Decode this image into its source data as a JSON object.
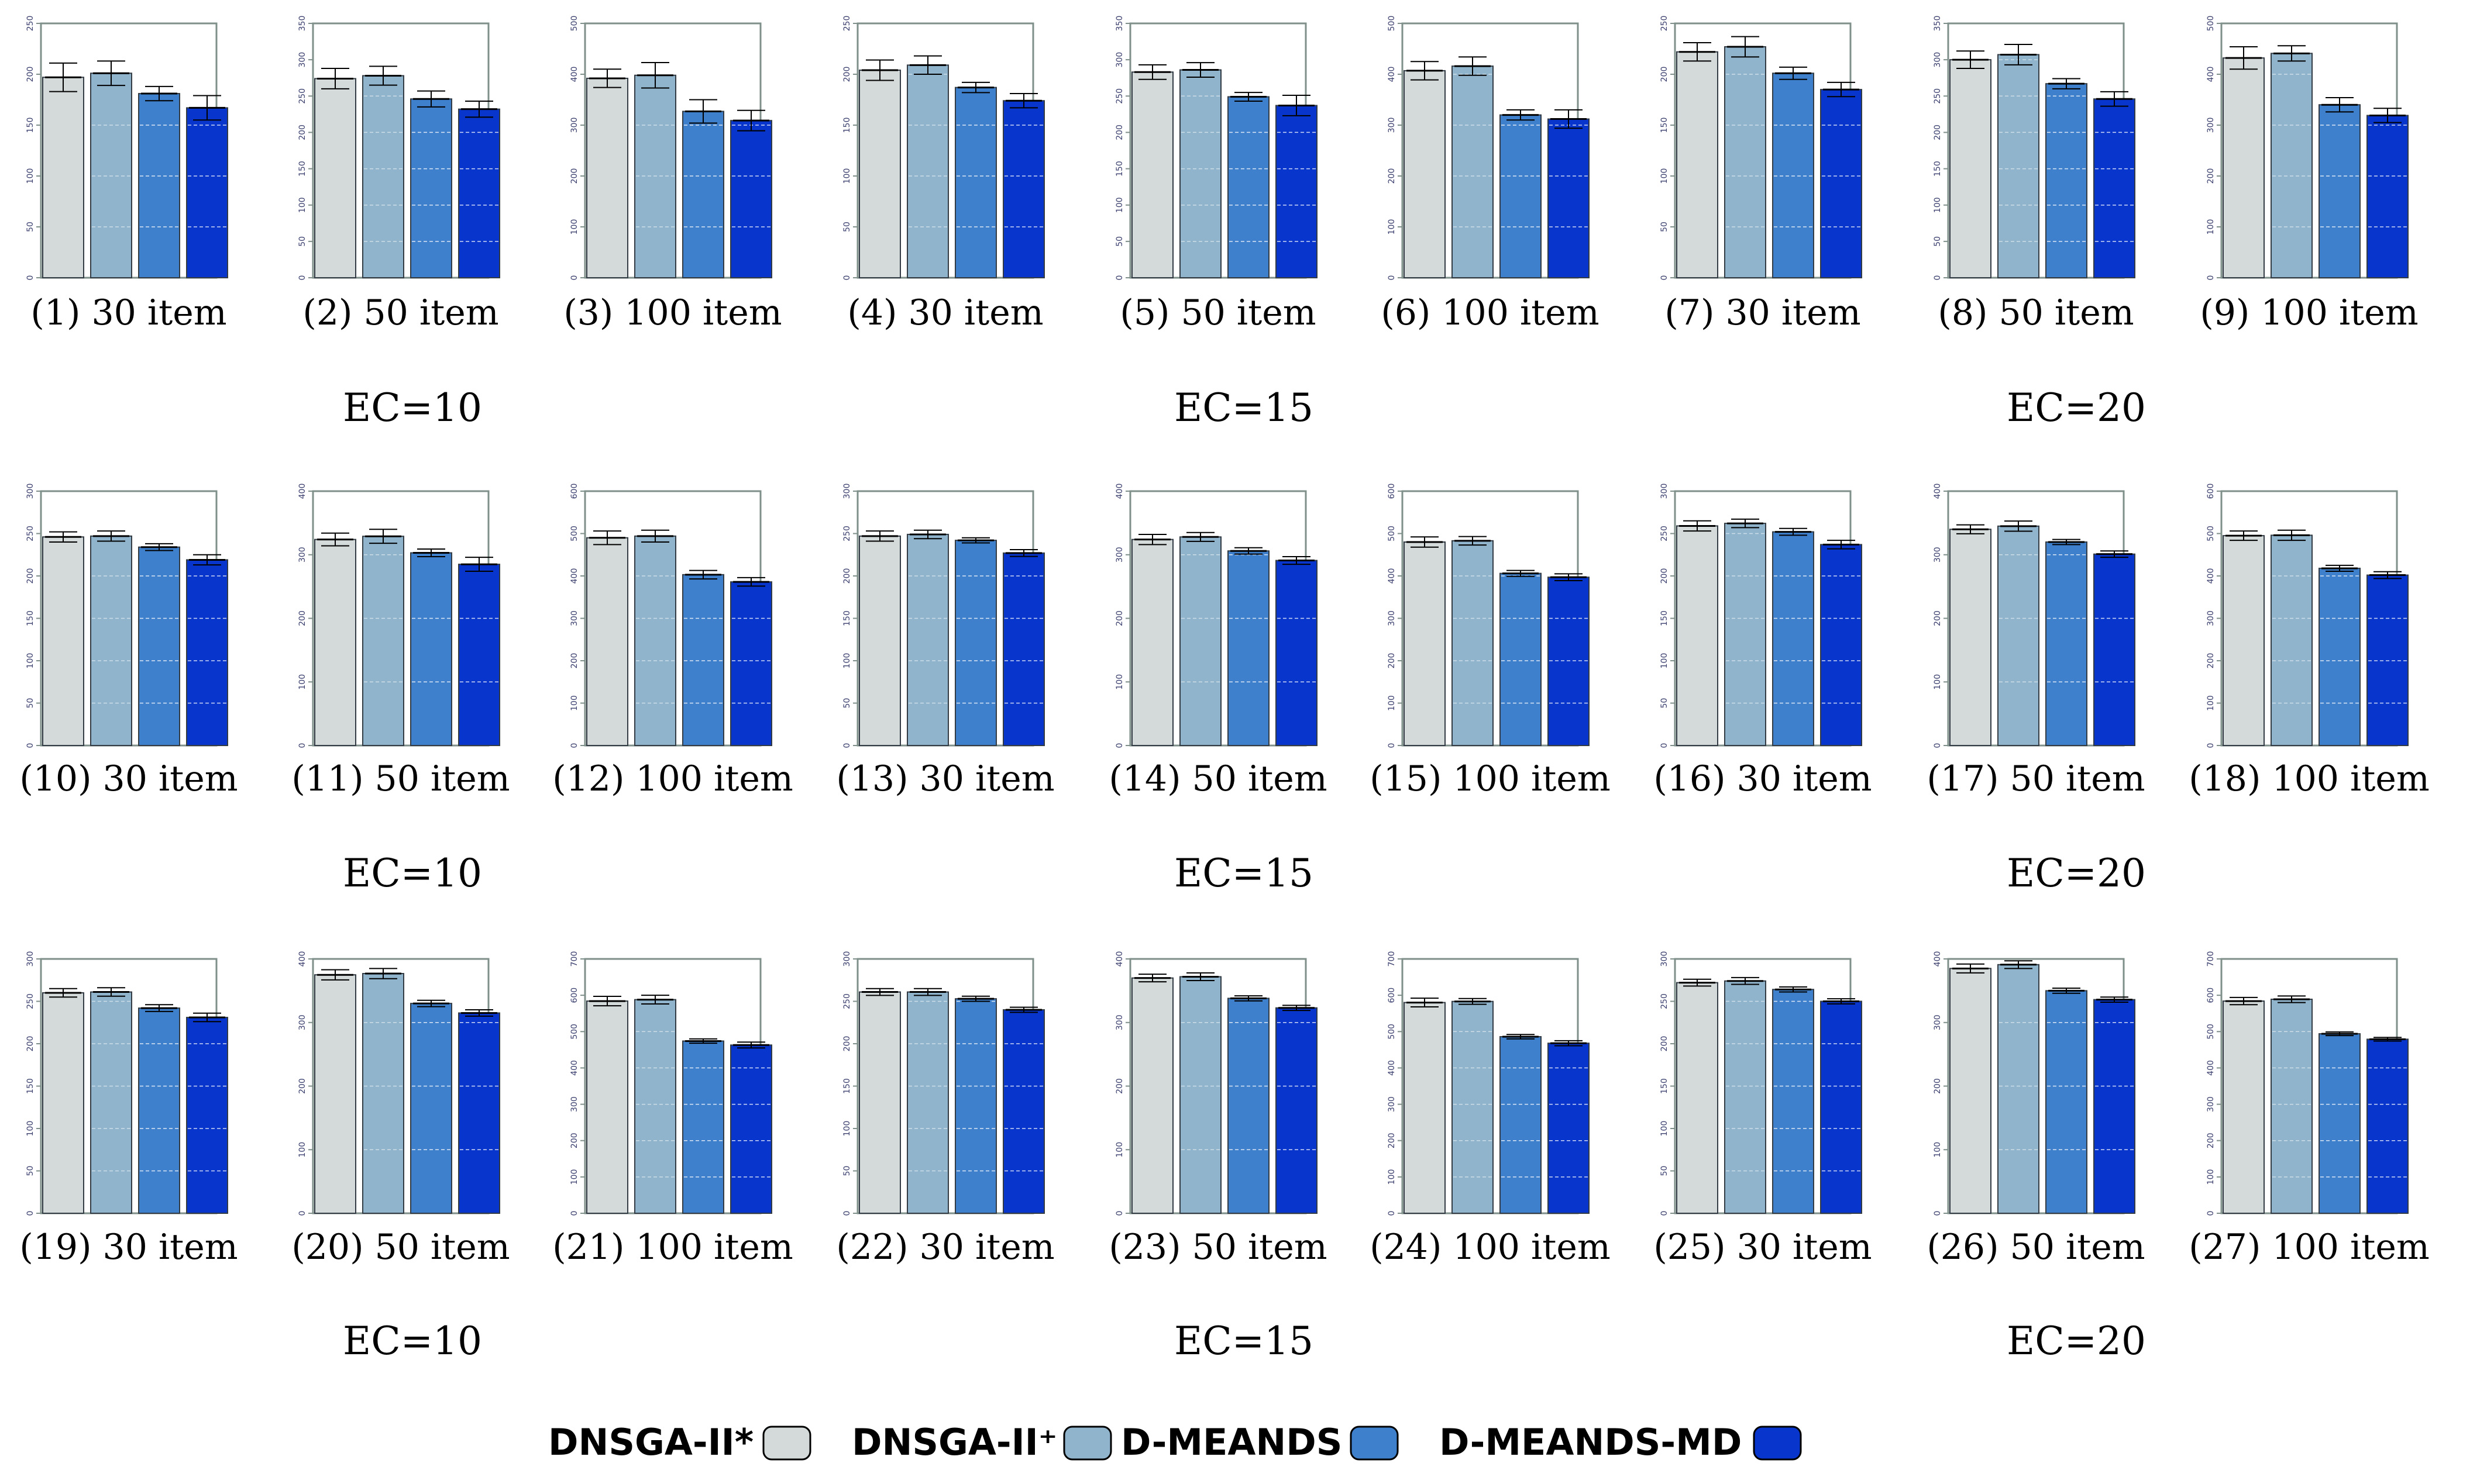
{
  "colors": {
    "series": [
      "#d3dad9",
      "#8fb4cc",
      "#3f80cc",
      "#0836cc"
    ],
    "error_bar": "#000000",
    "axis_box": "#7f8f8a",
    "gridline": "#ffffff"
  },
  "legend": {
    "items": [
      {
        "label": "DNSGA-II*",
        "color": "#d3dad9"
      },
      {
        "label": "DNSGA-II⁺",
        "color": "#8fb4cc"
      },
      {
        "label": "D-MEANDS",
        "color": "#3f80cc"
      },
      {
        "label": "D-MEANDS-MD",
        "color": "#0836cc"
      }
    ]
  },
  "group_labels": [
    [
      "EC=10",
      "EC=15",
      "EC=20"
    ],
    [
      "EC=10",
      "EC=15",
      "EC=20"
    ],
    [
      "EC=10",
      "EC=15",
      "EC=20"
    ]
  ],
  "chart_data": [
    {
      "type": "bar",
      "caption": "(1)  30 item",
      "ylim": [
        0,
        250
      ],
      "yticks": [
        0,
        50,
        100,
        150,
        200,
        250
      ],
      "series_names": [
        "DNSGA-II*",
        "DNSGA-II⁺",
        "D-MEANDS",
        "D-MEANDS-MD"
      ],
      "values": [
        197,
        201,
        181,
        167
      ],
      "errors": [
        14,
        12,
        7,
        12
      ]
    },
    {
      "type": "bar",
      "caption": "(2)  50 item",
      "ylim": [
        0,
        350
      ],
      "yticks": [
        0,
        50,
        100,
        150,
        200,
        250,
        300,
        350
      ],
      "series_names": [
        "DNSGA-II*",
        "DNSGA-II⁺",
        "D-MEANDS",
        "D-MEANDS-MD"
      ],
      "values": [
        274,
        278,
        246,
        232
      ],
      "errors": [
        14,
        13,
        11,
        11
      ]
    },
    {
      "type": "bar",
      "caption": "(3)  100 item",
      "ylim": [
        0,
        500
      ],
      "yticks": [
        0,
        100,
        200,
        300,
        400,
        500
      ],
      "series_names": [
        "DNSGA-II*",
        "DNSGA-II⁺",
        "D-MEANDS",
        "D-MEANDS-MD"
      ],
      "values": [
        392,
        398,
        327,
        309
      ],
      "errors": [
        18,
        25,
        23,
        20
      ]
    },
    {
      "type": "bar",
      "caption": "(4)  30 item",
      "ylim": [
        0,
        250
      ],
      "yticks": [
        0,
        50,
        100,
        150,
        200,
        250
      ],
      "series_names": [
        "DNSGA-II*",
        "DNSGA-II⁺",
        "D-MEANDS",
        "D-MEANDS-MD"
      ],
      "values": [
        204,
        209,
        187,
        174
      ],
      "errors": [
        10,
        9,
        5,
        7
      ]
    },
    {
      "type": "bar",
      "caption": "(5)  50 item",
      "ylim": [
        0,
        350
      ],
      "yticks": [
        0,
        50,
        100,
        150,
        200,
        250,
        300,
        350
      ],
      "series_names": [
        "DNSGA-II*",
        "DNSGA-II⁺",
        "D-MEANDS",
        "D-MEANDS-MD"
      ],
      "values": [
        283,
        286,
        249,
        237
      ],
      "errors": [
        10,
        10,
        6,
        14
      ]
    },
    {
      "type": "bar",
      "caption": "(6)  100 item",
      "ylim": [
        0,
        500
      ],
      "yticks": [
        0,
        100,
        200,
        300,
        400,
        500
      ],
      "series_names": [
        "DNSGA-II*",
        "DNSGA-II⁺",
        "D-MEANDS",
        "D-MEANDS-MD"
      ],
      "values": [
        407,
        416,
        320,
        312
      ],
      "errors": [
        18,
        18,
        10,
        18
      ]
    },
    {
      "type": "bar",
      "caption": "(7)  30 item",
      "ylim": [
        0,
        250
      ],
      "yticks": [
        0,
        50,
        100,
        150,
        200,
        250
      ],
      "series_names": [
        "DNSGA-II*",
        "DNSGA-II⁺",
        "D-MEANDS",
        "D-MEANDS-MD"
      ],
      "values": [
        222,
        227,
        201,
        185
      ],
      "errors": [
        9,
        10,
        6,
        7
      ]
    },
    {
      "type": "bar",
      "caption": "(8)  50 item",
      "ylim": [
        0,
        350
      ],
      "yticks": [
        0,
        50,
        100,
        150,
        200,
        250,
        300,
        350
      ],
      "series_names": [
        "DNSGA-II*",
        "DNSGA-II⁺",
        "D-MEANDS",
        "D-MEANDS-MD"
      ],
      "values": [
        300,
        307,
        267,
        246
      ],
      "errors": [
        12,
        14,
        7,
        10
      ]
    },
    {
      "type": "bar",
      "caption": "(9)  100 item",
      "ylim": [
        0,
        500
      ],
      "yticks": [
        0,
        100,
        200,
        300,
        400,
        500
      ],
      "series_names": [
        "DNSGA-II*",
        "DNSGA-II⁺",
        "D-MEANDS",
        "D-MEANDS-MD"
      ],
      "values": [
        432,
        441,
        340,
        319
      ],
      "errors": [
        22,
        15,
        14,
        14
      ]
    },
    {
      "type": "bar",
      "caption": "(10)  30 item",
      "ylim": [
        0,
        300
      ],
      "yticks": [
        0,
        50,
        100,
        150,
        200,
        250,
        300
      ],
      "series_names": [
        "DNSGA-II*",
        "DNSGA-II⁺",
        "D-MEANDS",
        "D-MEANDS-MD"
      ],
      "values": [
        246,
        247,
        234,
        219
      ],
      "errors": [
        6,
        6,
        4,
        6
      ]
    },
    {
      "type": "bar",
      "caption": "(11)  50 item",
      "ylim": [
        0,
        400
      ],
      "yticks": [
        0,
        100,
        200,
        300,
        400
      ],
      "series_names": [
        "DNSGA-II*",
        "DNSGA-II⁺",
        "D-MEANDS",
        "D-MEANDS-MD"
      ],
      "values": [
        324,
        329,
        303,
        285
      ],
      "errors": [
        10,
        11,
        6,
        11
      ]
    },
    {
      "type": "bar",
      "caption": "(12)  100 item",
      "ylim": [
        0,
        600
      ],
      "yticks": [
        0,
        100,
        200,
        300,
        400,
        500,
        600
      ],
      "series_names": [
        "DNSGA-II*",
        "DNSGA-II⁺",
        "D-MEANDS",
        "D-MEANDS-MD"
      ],
      "values": [
        490,
        494,
        403,
        386
      ],
      "errors": [
        16,
        14,
        10,
        10
      ]
    },
    {
      "type": "bar",
      "caption": "(13)  30 item",
      "ylim": [
        0,
        300
      ],
      "yticks": [
        0,
        50,
        100,
        150,
        200,
        250,
        300
      ],
      "series_names": [
        "DNSGA-II*",
        "DNSGA-II⁺",
        "D-MEANDS",
        "D-MEANDS-MD"
      ],
      "values": [
        247,
        249,
        242,
        227
      ],
      "errors": [
        6,
        5,
        3,
        4
      ]
    },
    {
      "type": "bar",
      "caption": "(14)  50 item",
      "ylim": [
        0,
        400
      ],
      "yticks": [
        0,
        100,
        200,
        300,
        400
      ],
      "series_names": [
        "DNSGA-II*",
        "DNSGA-II⁺",
        "D-MEANDS",
        "D-MEANDS-MD"
      ],
      "values": [
        324,
        328,
        306,
        291
      ],
      "errors": [
        8,
        7,
        5,
        6
      ]
    },
    {
      "type": "bar",
      "caption": "(15)  100 item",
      "ylim": [
        0,
        600
      ],
      "yticks": [
        0,
        100,
        200,
        300,
        400,
        500,
        600
      ],
      "series_names": [
        "DNSGA-II*",
        "DNSGA-II⁺",
        "D-MEANDS",
        "D-MEANDS-MD"
      ],
      "values": [
        480,
        483,
        406,
        397
      ],
      "errors": [
        12,
        10,
        7,
        8
      ]
    },
    {
      "type": "bar",
      "caption": "(16)  30 item",
      "ylim": [
        0,
        300
      ],
      "yticks": [
        0,
        50,
        100,
        150,
        200,
        250,
        300
      ],
      "series_names": [
        "DNSGA-II*",
        "DNSGA-II⁺",
        "D-MEANDS",
        "D-MEANDS-MD"
      ],
      "values": [
        259,
        262,
        252,
        237
      ],
      "errors": [
        6,
        5,
        4,
        5
      ]
    },
    {
      "type": "bar",
      "caption": "(17)  50 item",
      "ylim": [
        0,
        400
      ],
      "yticks": [
        0,
        100,
        200,
        300,
        400
      ],
      "series_names": [
        "DNSGA-II*",
        "DNSGA-II⁺",
        "D-MEANDS",
        "D-MEANDS-MD"
      ],
      "values": [
        340,
        345,
        320,
        301
      ],
      "errors": [
        7,
        8,
        4,
        5
      ]
    },
    {
      "type": "bar",
      "caption": "(18)  100 item",
      "ylim": [
        0,
        600
      ],
      "yticks": [
        0,
        100,
        200,
        300,
        400,
        500,
        600
      ],
      "series_names": [
        "DNSGA-II*",
        "DNSGA-II⁺",
        "D-MEANDS",
        "D-MEANDS-MD"
      ],
      "values": [
        495,
        496,
        418,
        402
      ],
      "errors": [
        11,
        12,
        7,
        8
      ]
    },
    {
      "type": "bar",
      "caption": "(19)  30 item",
      "ylim": [
        0,
        300
      ],
      "yticks": [
        0,
        50,
        100,
        150,
        200,
        250,
        300
      ],
      "series_names": [
        "DNSGA-II*",
        "DNSGA-II⁺",
        "D-MEANDS",
        "D-MEANDS-MD"
      ],
      "values": [
        260,
        261,
        242,
        231
      ],
      "errors": [
        5,
        5,
        4,
        5
      ]
    },
    {
      "type": "bar",
      "caption": "(20)  50 item",
      "ylim": [
        0,
        400
      ],
      "yticks": [
        0,
        100,
        200,
        300,
        400
      ],
      "series_names": [
        "DNSGA-II*",
        "DNSGA-II⁺",
        "D-MEANDS",
        "D-MEANDS-MD"
      ],
      "values": [
        375,
        377,
        330,
        315
      ],
      "errors": [
        8,
        8,
        5,
        5
      ]
    },
    {
      "type": "bar",
      "caption": "(21)  100 item",
      "ylim": [
        0,
        700
      ],
      "yticks": [
        0,
        100,
        200,
        300,
        400,
        500,
        600,
        700
      ],
      "series_names": [
        "DNSGA-II*",
        "DNSGA-II⁺",
        "D-MEANDS",
        "D-MEANDS-MD"
      ],
      "values": [
        584,
        588,
        474,
        463
      ],
      "errors": [
        13,
        12,
        6,
        8
      ]
    },
    {
      "type": "bar",
      "caption": "(22)  30 item",
      "ylim": [
        0,
        300
      ],
      "yticks": [
        0,
        50,
        100,
        150,
        200,
        250,
        300
      ],
      "series_names": [
        "DNSGA-II*",
        "DNSGA-II⁺",
        "D-MEANDS",
        "D-MEANDS-MD"
      ],
      "values": [
        261,
        261,
        253,
        240
      ],
      "errors": [
        4,
        4,
        3,
        3
      ]
    },
    {
      "type": "bar",
      "caption": "(23)  50 item",
      "ylim": [
        0,
        400
      ],
      "yticks": [
        0,
        100,
        200,
        300,
        400
      ],
      "series_names": [
        "DNSGA-II*",
        "DNSGA-II⁺",
        "D-MEANDS",
        "D-MEANDS-MD"
      ],
      "values": [
        370,
        372,
        338,
        323
      ],
      "errors": [
        6,
        6,
        4,
        4
      ]
    },
    {
      "type": "bar",
      "caption": "(24)  100 item",
      "ylim": [
        0,
        700
      ],
      "yticks": [
        0,
        100,
        200,
        300,
        400,
        500,
        600,
        700
      ],
      "series_names": [
        "DNSGA-II*",
        "DNSGA-II⁺",
        "D-MEANDS",
        "D-MEANDS-MD"
      ],
      "values": [
        580,
        583,
        486,
        468
      ],
      "errors": [
        12,
        8,
        6,
        7
      ]
    },
    {
      "type": "bar",
      "caption": "(25)  30 item",
      "ylim": [
        0,
        300
      ],
      "yticks": [
        0,
        50,
        100,
        150,
        200,
        250,
        300
      ],
      "series_names": [
        "DNSGA-II*",
        "DNSGA-II⁺",
        "D-MEANDS",
        "D-MEANDS-MD"
      ],
      "values": [
        272,
        274,
        264,
        250
      ],
      "errors": [
        4,
        4,
        3,
        3
      ]
    },
    {
      "type": "bar",
      "caption": "(26)  50 item",
      "ylim": [
        0,
        400
      ],
      "yticks": [
        0,
        100,
        200,
        300,
        400
      ],
      "series_names": [
        "DNSGA-II*",
        "DNSGA-II⁺",
        "D-MEANDS",
        "D-MEANDS-MD"
      ],
      "values": [
        385,
        391,
        350,
        336
      ],
      "errors": [
        7,
        6,
        4,
        4
      ]
    },
    {
      "type": "bar",
      "caption": "(27)  100 item",
      "ylim": [
        0,
        700
      ],
      "yticks": [
        0,
        100,
        200,
        300,
        400,
        500,
        600,
        700
      ],
      "series_names": [
        "DNSGA-II*",
        "DNSGA-II⁺",
        "D-MEANDS",
        "D-MEANDS-MD"
      ],
      "values": [
        584,
        589,
        494,
        479
      ],
      "errors": [
        10,
        9,
        5,
        5
      ]
    }
  ]
}
